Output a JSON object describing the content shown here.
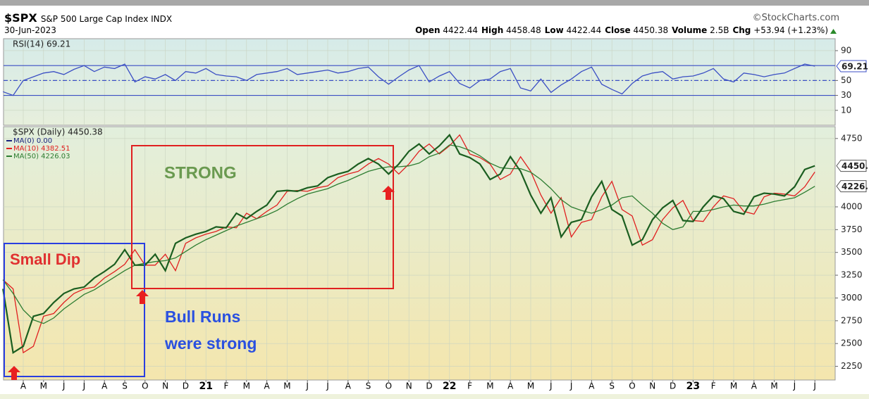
{
  "header": {
    "symbol": "$SPX",
    "name": "S&P 500 Large Cap Index INDX",
    "source": "©StockCharts.com",
    "date": "30-Jun-2023",
    "quote": [
      {
        "label": "Open",
        "value": "4422.44"
      },
      {
        "label": "High",
        "value": "4458.48"
      },
      {
        "label": "Low",
        "value": "4422.44"
      },
      {
        "label": "Close",
        "value": "4450.38"
      },
      {
        "label": "Volume",
        "value": "2.5B"
      },
      {
        "label": "Chg",
        "value": "+53.94 (+1.23%)"
      }
    ]
  },
  "chart_data": [
    {
      "type": "line",
      "title": "RSI(14) 69.21",
      "ylim": [
        -10,
        106
      ],
      "yticks": [
        10,
        30,
        50,
        90
      ],
      "reference_lines": [
        30,
        50,
        70
      ],
      "grid": true,
      "series": [
        {
          "name": "RSI(14)",
          "color": "#3b4fc4",
          "last_label": "69.21",
          "values": [
            35,
            30,
            50,
            55,
            60,
            62,
            58,
            65,
            70,
            62,
            68,
            66,
            72,
            48,
            55,
            52,
            58,
            50,
            62,
            60,
            66,
            58,
            56,
            55,
            50,
            58,
            60,
            62,
            66,
            58,
            60,
            62,
            64,
            60,
            62,
            66,
            68,
            55,
            45,
            55,
            64,
            70,
            48,
            56,
            62,
            46,
            40,
            50,
            52,
            62,
            66,
            40,
            36,
            52,
            34,
            44,
            52,
            62,
            68,
            45,
            38,
            32,
            46,
            56,
            60,
            62,
            52,
            55,
            56,
            60,
            66,
            52,
            48,
            60,
            58,
            55,
            58,
            60,
            66,
            72,
            69.21
          ]
        }
      ]
    },
    {
      "type": "line",
      "title": "$SPX (Daily) 4450.38",
      "ylim": [
        2100,
        4880
      ],
      "yticks": [
        2250,
        2500,
        2750,
        3000,
        3250,
        3500,
        3750,
        4000,
        4750
      ],
      "grid": true,
      "categories": [
        null,
        null,
        "A",
        null,
        "M",
        null,
        "J",
        null,
        "J",
        null,
        "A",
        null,
        "S",
        null,
        "O",
        null,
        "N",
        null,
        "D",
        null,
        "21",
        null,
        "F",
        null,
        "M",
        null,
        "A",
        null,
        "M",
        null,
        "J",
        null,
        "J",
        null,
        "A",
        null,
        "S",
        null,
        "O",
        null,
        "N",
        null,
        "D",
        null,
        "22",
        null,
        "F",
        null,
        "M",
        null,
        "A",
        null,
        "M",
        null,
        "J",
        null,
        "J",
        null,
        "A",
        null,
        "S",
        null,
        "O",
        null,
        "N",
        null,
        "D",
        null,
        "23",
        null,
        "F",
        null,
        "M",
        null,
        "A",
        null,
        "M",
        null,
        "J",
        null,
        "J"
      ],
      "legend_extra": {
        "name": "MA(0) 0.00",
        "color": "#1a237e"
      },
      "series": [
        {
          "name": "MA(10) 4382.51",
          "color": "#e02020",
          "values": [
            3200,
            3100,
            2400,
            2470,
            2800,
            2830,
            2950,
            3050,
            3100,
            3120,
            3220,
            3290,
            3370,
            3530,
            3360,
            3360,
            3480,
            3300,
            3600,
            3660,
            3700,
            3730,
            3780,
            3770,
            3930,
            3870,
            3950,
            4020,
            4170,
            4180,
            4170,
            4210,
            4230,
            4320,
            4360,
            4390,
            4470,
            4530,
            4470,
            4360,
            4470,
            4610,
            4690,
            4580,
            4670,
            4790,
            4580,
            4540,
            4470,
            4300,
            4360,
            4550,
            4390,
            4130,
            3930,
            4100,
            3670,
            3830,
            3860,
            4110,
            4280,
            3970,
            3900,
            3580,
            3640,
            3860,
            3990,
            4070,
            3850,
            3840,
            4000,
            4120,
            4090,
            3950,
            3920,
            4110,
            4150,
            4140,
            4120,
            4220,
            4382.51
          ]
        },
        {
          "name": "MA(50) 4226.03",
          "color": "#2e7d32",
          "last_label": "4226.",
          "values": [
            3200,
            3050,
            2870,
            2760,
            2720,
            2780,
            2880,
            2960,
            3040,
            3090,
            3160,
            3230,
            3300,
            3360,
            3380,
            3400,
            3410,
            3440,
            3510,
            3580,
            3640,
            3690,
            3740,
            3790,
            3830,
            3870,
            3910,
            3960,
            4030,
            4090,
            4140,
            4170,
            4200,
            4250,
            4290,
            4340,
            4390,
            4420,
            4440,
            4440,
            4450,
            4480,
            4550,
            4590,
            4680,
            4660,
            4620,
            4560,
            4480,
            4430,
            4420,
            4420,
            4380,
            4300,
            4200,
            4080,
            4000,
            3960,
            3930,
            3970,
            4020,
            4100,
            4120,
            4020,
            3930,
            3820,
            3750,
            3780,
            3950,
            3950,
            3970,
            4000,
            4020,
            4010,
            4010,
            4030,
            4060,
            4080,
            4100,
            4160,
            4226.03
          ]
        },
        {
          "name": "$SPX (Daily)",
          "color": "#1b5e20",
          "last_label": "4450.",
          "values": [
            3100,
            2400,
            2470,
            2800,
            2830,
            2950,
            3050,
            3100,
            3120,
            3220,
            3290,
            3370,
            3530,
            3360,
            3360,
            3480,
            3300,
            3600,
            3660,
            3700,
            3730,
            3780,
            3770,
            3930,
            3870,
            3950,
            4020,
            4170,
            4180,
            4170,
            4210,
            4230,
            4320,
            4360,
            4390,
            4470,
            4530,
            4470,
            4360,
            4470,
            4610,
            4690,
            4580,
            4670,
            4790,
            4580,
            4540,
            4470,
            4300,
            4360,
            4550,
            4390,
            4130,
            3930,
            4100,
            3670,
            3830,
            3860,
            4110,
            4280,
            3970,
            3900,
            3580,
            3640,
            3860,
            3990,
            4070,
            3850,
            3840,
            4000,
            4120,
            4090,
            3950,
            3920,
            4110,
            4150,
            4140,
            4120,
            4220,
            4410,
            4450.38
          ]
        }
      ],
      "annotations": [
        "Small Dip",
        "STRONG",
        "Bull Runs",
        "were strong"
      ]
    }
  ]
}
